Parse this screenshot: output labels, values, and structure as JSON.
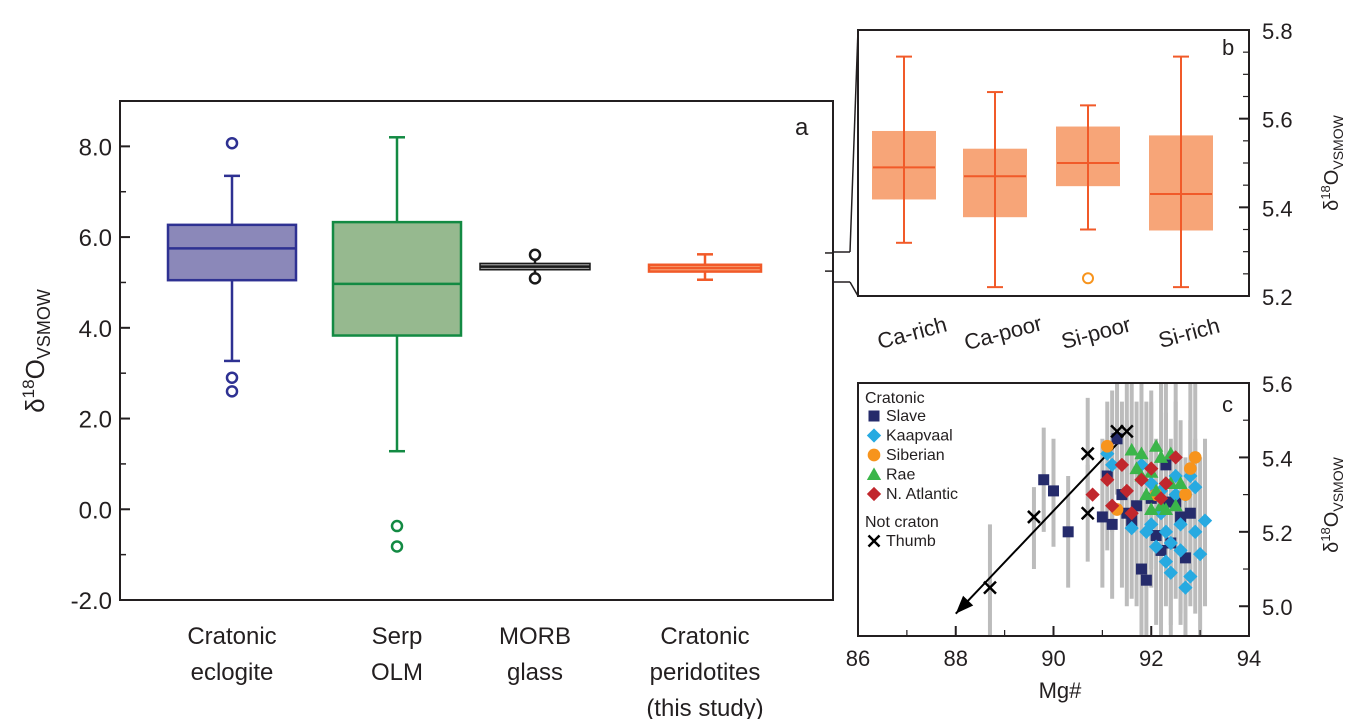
{
  "chart_data": [
    {
      "panel": "a",
      "type": "box",
      "ylabel": {
        "main": "δ",
        "sup": "18",
        "o": "O",
        "sub": "VSMOW"
      },
      "ylim": [
        -2.0,
        9.0
      ],
      "yticks": [
        "-2.0",
        "0.0",
        "2.0",
        "4.0",
        "6.0",
        "8.0"
      ],
      "ytick_values": [
        -2,
        0,
        2,
        4,
        6,
        8
      ],
      "categories": [
        {
          "lines": [
            "Cratonic",
            "eclogite"
          ]
        },
        {
          "lines": [
            "Serp",
            "OLM"
          ]
        },
        {
          "lines": [
            "MORB",
            "glass"
          ]
        },
        {
          "lines": [
            "Cratonic",
            "peridotites",
            "(this study)"
          ]
        }
      ],
      "boxes": [
        {
          "q1": 5.05,
          "median": 5.75,
          "q3": 6.27,
          "whisker_low": 3.27,
          "whisker_high": 7.35,
          "outliers": [
            8.07,
            2.9,
            2.6
          ],
          "color": "#2e3192",
          "fill": "#8b88b9"
        },
        {
          "q1": 3.83,
          "median": 4.97,
          "q3": 6.33,
          "whisker_low": 1.28,
          "whisker_high": 8.2,
          "outliers": [
            -0.37,
            -0.82
          ],
          "color": "#138a43",
          "fill": "#96b98f"
        },
        {
          "q1": 5.28,
          "median": 5.35,
          "q3": 5.42,
          "whisker_low": 5.09,
          "whisker_high": 5.61,
          "outliers": [],
          "color": "#1a1a1a",
          "fill": "#9c9c9c"
        },
        {
          "q1": 5.24,
          "median": 5.32,
          "q3": 5.39,
          "whisker_low": 5.06,
          "whisker_high": 5.62,
          "outliers": [],
          "color": "#f15a29",
          "fill": "#f7a578"
        }
      ],
      "zoom_range": [
        5.2,
        5.65
      ]
    },
    {
      "panel": "b",
      "type": "box",
      "ylim": [
        5.2,
        5.8
      ],
      "yticks": [
        "5.2",
        "5.4",
        "5.6",
        "5.8"
      ],
      "ytick_values": [
        5.2,
        5.4,
        5.6,
        5.8
      ],
      "ylabel": {
        "main": "δ",
        "sup": "18",
        "o": "O",
        "sub": "VSMOW"
      },
      "categories": [
        "Ca-rich",
        "Ca-poor",
        "Si-poor",
        "Si-rich"
      ],
      "color": "#f15a29",
      "fill": "#f7a578",
      "boxes": [
        {
          "q1": 5.42,
          "median": 5.49,
          "q3": 5.57,
          "whisker_low": 5.32,
          "whisker_high": 5.74
        },
        {
          "q1": 5.38,
          "median": 5.47,
          "q3": 5.53,
          "whisker_low": 5.22,
          "whisker_high": 5.66
        },
        {
          "q1": 5.45,
          "median": 5.5,
          "q3": 5.58,
          "whisker_low": 5.35,
          "whisker_high": 5.63,
          "outliers": [
            5.24
          ]
        },
        {
          "q1": 5.35,
          "median": 5.43,
          "q3": 5.56,
          "whisker_low": 5.22,
          "whisker_high": 5.74
        }
      ]
    },
    {
      "panel": "c",
      "type": "scatter",
      "xlabel": "Mg#",
      "ylabel": {
        "main": "δ",
        "sup": "18",
        "o": "O",
        "sub": "VSMOW"
      },
      "xlim": [
        86,
        94
      ],
      "ylim": [
        4.92,
        5.6
      ],
      "xticks": [
        "86",
        "88",
        "90",
        "92",
        "94"
      ],
      "xtick_values": [
        86,
        88,
        90,
        92,
        94
      ],
      "yticks": [
        "5.0",
        "5.2",
        "5.4",
        "5.6"
      ],
      "ytick_values": [
        5.0,
        5.2,
        5.4,
        5.6
      ],
      "legend": {
        "header1": "Cratonic",
        "items": [
          {
            "name": "Slave",
            "shape": "square",
            "color": "#252b6b"
          },
          {
            "name": "Kaapvaal",
            "shape": "diamond",
            "color": "#27aae1"
          },
          {
            "name": "Siberian",
            "shape": "circle",
            "color": "#f7941d"
          },
          {
            "name": "Rae",
            "shape": "triangle",
            "color": "#3bb54a"
          },
          {
            "name": "N. Atlantic",
            "shape": "diamond",
            "color": "#c1272d"
          }
        ],
        "header2": "Not craton",
        "items2": [
          {
            "name": "Thumb",
            "shape": "cross",
            "color": "#000000"
          }
        ]
      },
      "arrow": {
        "from": [
          91.4,
          5.45
        ],
        "to": [
          88.0,
          4.98
        ]
      },
      "errorbar_color": "#bcbcbc",
      "series": [
        {
          "name": "Slave",
          "points": [
            [
              89.8,
              5.34
            ],
            [
              90.0,
              5.31
            ],
            [
              90.3,
              5.2
            ],
            [
              91.0,
              5.24
            ],
            [
              91.1,
              5.35
            ],
            [
              91.2,
              5.22
            ],
            [
              91.4,
              5.3
            ],
            [
              91.5,
              5.25
            ],
            [
              91.6,
              5.23
            ],
            [
              91.7,
              5.27
            ],
            [
              91.8,
              5.1
            ],
            [
              91.9,
              5.07
            ],
            [
              92.0,
              5.29
            ],
            [
              92.1,
              5.19
            ],
            [
              92.2,
              5.15
            ],
            [
              92.3,
              5.38
            ],
            [
              92.4,
              5.17
            ],
            [
              92.5,
              5.28
            ],
            [
              92.6,
              5.24
            ],
            [
              92.7,
              5.13
            ],
            [
              92.8,
              5.25
            ],
            [
              92.3,
              5.28
            ],
            [
              92.1,
              5.3
            ],
            [
              91.3,
              5.45
            ]
          ]
        },
        {
          "name": "Kaapvaal",
          "points": [
            [
              91.2,
              5.38
            ],
            [
              91.6,
              5.21
            ],
            [
              91.8,
              5.38
            ],
            [
              92.0,
              5.33
            ],
            [
              92.0,
              5.22
            ],
            [
              92.1,
              5.16
            ],
            [
              92.2,
              5.25
            ],
            [
              92.3,
              5.2
            ],
            [
              92.3,
              5.12
            ],
            [
              92.4,
              5.09
            ],
            [
              92.5,
              5.3
            ],
            [
              92.6,
              5.22
            ],
            [
              92.6,
              5.15
            ],
            [
              92.7,
              5.05
            ],
            [
              92.7,
              5.3
            ],
            [
              92.8,
              5.35
            ],
            [
              92.9,
              5.2
            ],
            [
              93.0,
              5.14
            ],
            [
              93.1,
              5.23
            ],
            [
              92.5,
              5.35
            ],
            [
              91.9,
              5.2
            ],
            [
              92.2,
              5.31
            ],
            [
              92.4,
              5.17
            ],
            [
              92.9,
              5.32
            ],
            [
              91.1,
              5.41
            ],
            [
              92.8,
              5.08
            ]
          ]
        },
        {
          "name": "Siberian",
          "points": [
            [
              91.1,
              5.43
            ],
            [
              91.3,
              5.26
            ],
            [
              92.1,
              5.3
            ],
            [
              92.7,
              5.3
            ],
            [
              92.8,
              5.37
            ],
            [
              92.9,
              5.4
            ]
          ]
        },
        {
          "name": "Rae",
          "points": [
            [
              91.6,
              5.42
            ],
            [
              91.7,
              5.37
            ],
            [
              91.8,
              5.41
            ],
            [
              91.9,
              5.3
            ],
            [
              92.0,
              5.36
            ],
            [
              92.1,
              5.31
            ],
            [
              92.2,
              5.4
            ],
            [
              92.2,
              5.27
            ],
            [
              92.3,
              5.26
            ],
            [
              92.4,
              5.33
            ],
            [
              92.5,
              5.27
            ],
            [
              92.4,
              5.41
            ],
            [
              92.1,
              5.43
            ],
            [
              91.8,
              5.35
            ],
            [
              92.0,
              5.26
            ],
            [
              92.6,
              5.33
            ]
          ]
        },
        {
          "name": "N. Atlantic",
          "points": [
            [
              90.8,
              5.3
            ],
            [
              91.1,
              5.34
            ],
            [
              91.2,
              5.27
            ],
            [
              91.5,
              5.31
            ],
            [
              91.6,
              5.25
            ],
            [
              91.8,
              5.34
            ],
            [
              92.0,
              5.37
            ],
            [
              92.2,
              5.29
            ],
            [
              92.5,
              5.4
            ],
            [
              92.3,
              5.33
            ],
            [
              91.4,
              5.38
            ]
          ]
        },
        {
          "name": "Thumb",
          "points": [
            [
              88.7,
              5.05
            ],
            [
              89.6,
              5.24
            ],
            [
              90.7,
              5.41
            ],
            [
              90.7,
              5.25
            ],
            [
              91.3,
              5.47
            ],
            [
              91.5,
              5.47
            ]
          ]
        }
      ],
      "errorbars": [
        [
          88.7,
          5.05,
          4.9,
          5.22
        ],
        [
          89.6,
          5.24,
          5.1,
          5.32
        ],
        [
          90.7,
          5.41,
          5.3,
          5.56
        ],
        [
          90.7,
          5.25,
          5.12,
          5.38
        ],
        [
          91.3,
          5.47,
          5.3,
          5.6
        ],
        [
          91.5,
          5.47,
          5.33,
          5.6
        ],
        [
          89.8,
          5.34,
          5.2,
          5.48
        ],
        [
          90.0,
          5.31,
          5.16,
          5.45
        ],
        [
          90.3,
          5.2,
          5.05,
          5.35
        ],
        [
          91.0,
          5.24,
          5.05,
          5.45
        ],
        [
          91.1,
          5.35,
          5.15,
          5.55
        ],
        [
          91.2,
          5.22,
          5.02,
          5.42
        ],
        [
          91.4,
          5.3,
          5.05,
          5.55
        ],
        [
          91.5,
          5.25,
          5.0,
          5.5
        ],
        [
          91.6,
          5.23,
          5.02,
          5.45
        ],
        [
          91.7,
          5.27,
          5.0,
          5.55
        ],
        [
          91.8,
          5.1,
          4.92,
          5.35
        ],
        [
          91.9,
          5.07,
          4.92,
          5.3
        ],
        [
          92.0,
          5.29,
          5.05,
          5.55
        ],
        [
          92.1,
          5.19,
          4.95,
          5.45
        ],
        [
          92.2,
          5.15,
          4.92,
          5.4
        ],
        [
          92.3,
          5.38,
          5.15,
          5.6
        ],
        [
          92.4,
          5.17,
          4.95,
          5.45
        ],
        [
          92.5,
          5.28,
          5.02,
          5.55
        ],
        [
          92.6,
          5.24,
          4.98,
          5.5
        ],
        [
          92.7,
          5.13,
          4.92,
          5.4
        ],
        [
          92.8,
          5.25,
          5.0,
          5.5
        ],
        [
          92.9,
          5.2,
          4.98,
          5.45
        ],
        [
          93.0,
          5.14,
          4.92,
          5.4
        ],
        [
          93.1,
          5.23,
          5.0,
          5.45
        ],
        [
          91.2,
          5.38,
          5.2,
          5.58
        ],
        [
          91.8,
          5.38,
          5.15,
          5.6
        ],
        [
          92.0,
          5.33,
          5.1,
          5.58
        ],
        [
          92.4,
          5.09,
          4.92,
          5.3
        ],
        [
          92.6,
          5.15,
          4.95,
          5.38
        ],
        [
          92.8,
          5.35,
          5.1,
          5.6
        ],
        [
          92.9,
          5.4,
          5.2,
          5.6
        ],
        [
          92.2,
          5.4,
          5.2,
          5.6
        ],
        [
          91.9,
          5.3,
          5.05,
          5.55
        ],
        [
          92.5,
          5.4,
          5.18,
          5.6
        ],
        [
          92.3,
          5.26,
          5.0,
          5.52
        ],
        [
          91.6,
          5.42,
          5.2,
          5.6
        ]
      ]
    }
  ],
  "panel_labels": {
    "a": "a",
    "b": "b",
    "c": "c"
  }
}
